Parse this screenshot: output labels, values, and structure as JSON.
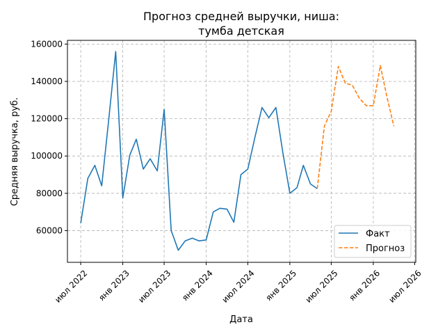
{
  "chart_data": {
    "type": "line",
    "title_lines": [
      "Прогноз средней выручки, ниша:",
      "тумба детская"
    ],
    "xlabel": "Дата",
    "ylabel": "Средняя выручка, руб.",
    "ylim": [
      43000,
      162000
    ],
    "xlim": [
      "2022-05-04",
      "2026-07-06"
    ],
    "x_ticks": [
      {
        "date": "2022-07-01",
        "label": "июл 2022"
      },
      {
        "date": "2023-01-01",
        "label": "янв 2023"
      },
      {
        "date": "2023-07-01",
        "label": "июл 2023"
      },
      {
        "date": "2024-01-01",
        "label": "янв 2024"
      },
      {
        "date": "2024-07-01",
        "label": "июл 2024"
      },
      {
        "date": "2025-01-01",
        "label": "янв 2025"
      },
      {
        "date": "2025-07-01",
        "label": "июл 2025"
      },
      {
        "date": "2026-01-01",
        "label": "янв 2026"
      },
      {
        "date": "2026-07-01",
        "label": "июл 2026"
      }
    ],
    "y_ticks": [
      {
        "value": 60000,
        "label": "60000"
      },
      {
        "value": 80000,
        "label": "80000"
      },
      {
        "value": 100000,
        "label": "100000"
      },
      {
        "value": 120000,
        "label": "120000"
      },
      {
        "value": 140000,
        "label": "140000"
      },
      {
        "value": 160000,
        "label": "160000"
      }
    ],
    "grid": true,
    "legend_position": "lower-right",
    "series": [
      {
        "name": "Факт",
        "color": "#1f77b4",
        "style": "solid",
        "points": [
          [
            "2022-07-01",
            64000
          ],
          [
            "2022-08-01",
            88000
          ],
          [
            "2022-09-01",
            95000
          ],
          [
            "2022-10-01",
            84000
          ],
          [
            "2022-11-01",
            120000
          ],
          [
            "2022-12-01",
            156000
          ],
          [
            "2023-01-01",
            77500
          ],
          [
            "2023-02-01",
            100500
          ],
          [
            "2023-03-01",
            109000
          ],
          [
            "2023-04-01",
            93000
          ],
          [
            "2023-05-01",
            98500
          ],
          [
            "2023-06-01",
            92000
          ],
          [
            "2023-07-01",
            125000
          ],
          [
            "2023-08-01",
            60000
          ],
          [
            "2023-09-01",
            49500
          ],
          [
            "2023-10-01",
            54500
          ],
          [
            "2023-11-01",
            56000
          ],
          [
            "2023-12-01",
            54500
          ],
          [
            "2024-01-01",
            55000
          ],
          [
            "2024-02-01",
            70000
          ],
          [
            "2024-03-01",
            72000
          ],
          [
            "2024-04-01",
            71500
          ],
          [
            "2024-05-01",
            64500
          ],
          [
            "2024-06-01",
            90000
          ],
          [
            "2024-07-01",
            93000
          ],
          [
            "2024-08-01",
            110000
          ],
          [
            "2024-09-01",
            126000
          ],
          [
            "2024-10-01",
            120500
          ],
          [
            "2024-11-01",
            126000
          ],
          [
            "2024-12-01",
            102000
          ],
          [
            "2025-01-01",
            80000
          ],
          [
            "2025-02-01",
            83000
          ],
          [
            "2025-03-01",
            95000
          ],
          [
            "2025-04-01",
            85000
          ],
          [
            "2025-05-01",
            82500
          ]
        ]
      },
      {
        "name": "Прогноз",
        "color": "#ff7f0e",
        "style": "dashed",
        "points": [
          [
            "2025-05-01",
            82500
          ],
          [
            "2025-06-01",
            116000
          ],
          [
            "2025-07-01",
            124000
          ],
          [
            "2025-08-01",
            148000
          ],
          [
            "2025-09-01",
            139000
          ],
          [
            "2025-10-01",
            138000
          ],
          [
            "2025-11-01",
            131000
          ],
          [
            "2025-12-01",
            127000
          ],
          [
            "2026-01-01",
            127000
          ],
          [
            "2026-02-01",
            148500
          ],
          [
            "2026-03-01",
            132000
          ],
          [
            "2026-04-01",
            116000
          ]
        ]
      }
    ]
  }
}
